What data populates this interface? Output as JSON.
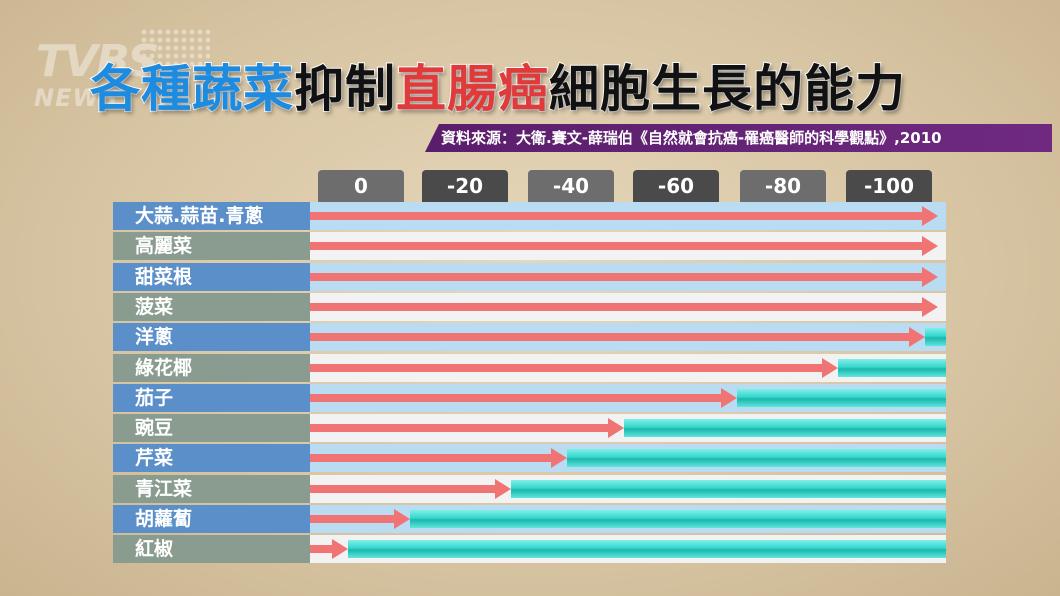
{
  "logo": {
    "text_top": "TVBS",
    "text_bottom": "NEWS"
  },
  "title": {
    "part1": "各種蔬菜",
    "part2": "抑制",
    "part3": "直腸癌",
    "part4": "細胞生長的能力"
  },
  "source": "資料來源：大衛.賽文-薛瑞伯《自然就會抗癌-罹癌醫師的科學觀點》,2010",
  "colors": {
    "title_blue": "#1d8be0",
    "title_red": "#e03a3a",
    "label_blue": "#5b8fc9",
    "label_gray": "#8a9c8f",
    "row_light": "#b9dcf2",
    "row_white": "#f2f2f2",
    "arrow": "#f07474",
    "cyan": "#2fd0c6",
    "tab_light": "#6d6d6d",
    "tab_dark": "#4a4a4a"
  },
  "chart_data": {
    "type": "bar",
    "title": "各種蔬菜抑制直腸癌細胞生長的能力",
    "xlabel": "",
    "ylabel": "",
    "xlim": [
      0,
      -100
    ],
    "x_ticks": [
      "0",
      "-20",
      "-40",
      "-60",
      "-80",
      "-100"
    ],
    "categories": [
      "大蒜.蒜苗.青蔥",
      "高麗菜",
      "甜菜根",
      "菠菜",
      "洋蔥",
      "綠花椰",
      "茄子",
      "豌豆",
      "芹菜",
      "青江菜",
      "胡蘿蔔",
      "紅椒"
    ],
    "values": [
      -100,
      -100,
      -100,
      -100,
      -98,
      -84,
      -68,
      -50,
      -41,
      -32,
      -16,
      -6
    ]
  }
}
